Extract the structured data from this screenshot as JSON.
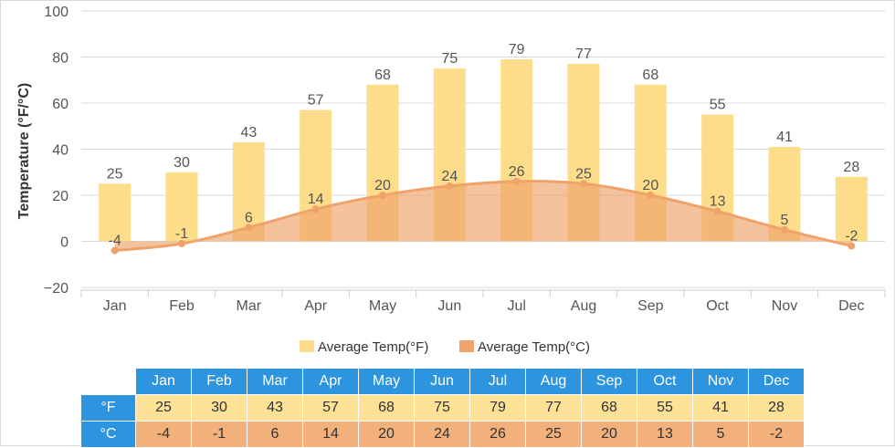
{
  "chart_data": {
    "type": "bar",
    "title": "",
    "xlabel": "",
    "ylabel": "Temperature (°F/°C)",
    "ylim": [
      -20,
      100
    ],
    "yticks": [
      "−20",
      "0",
      "20",
      "40",
      "60",
      "80",
      "100"
    ],
    "ytick_values": [
      -20,
      0,
      20,
      40,
      60,
      80,
      100
    ],
    "grid": true,
    "legend_position": "bottom",
    "categories": [
      "Jan",
      "Feb",
      "Mar",
      "Apr",
      "May",
      "Jun",
      "Jul",
      "Aug",
      "Sep",
      "Oct",
      "Nov",
      "Dec"
    ],
    "series": [
      {
        "name": "Average Temp(°F)",
        "type": "bar",
        "color": "#fddc8a",
        "values": [
          25,
          30,
          43,
          57,
          68,
          75,
          79,
          77,
          68,
          55,
          41,
          28
        ]
      },
      {
        "name": "Average Temp(°C)",
        "type": "area",
        "color": "#efa26a",
        "values": [
          -4,
          -1,
          6,
          14,
          20,
          24,
          26,
          25,
          20,
          13,
          5,
          -2
        ]
      }
    ]
  },
  "table": {
    "headers": [
      "Jan",
      "Feb",
      "Mar",
      "Apr",
      "May",
      "Jun",
      "Jul",
      "Aug",
      "Sep",
      "Oct",
      "Nov",
      "Dec"
    ],
    "rows": [
      {
        "label": "°F",
        "values": [
          "25",
          "30",
          "43",
          "57",
          "68",
          "75",
          "79",
          "77",
          "68",
          "55",
          "41",
          "28"
        ]
      },
      {
        "label": "°C",
        "values": [
          "-4",
          "-1",
          "6",
          "14",
          "20",
          "24",
          "26",
          "25",
          "20",
          "13",
          "5",
          "-2"
        ]
      }
    ]
  }
}
